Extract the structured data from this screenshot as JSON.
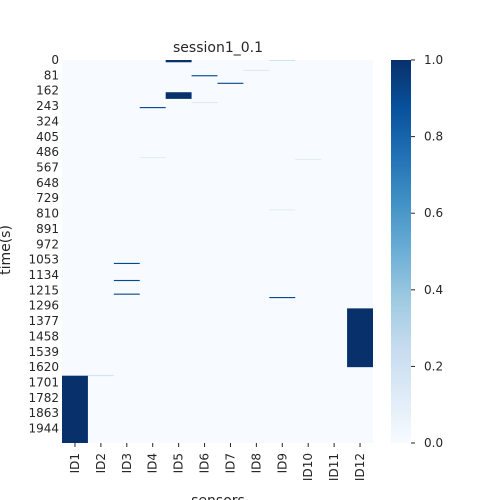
{
  "chart_data": {
    "type": "heatmap",
    "title": "session1_0.1",
    "xlabel": "sensors",
    "ylabel": "time(s)",
    "x_categories": [
      "ID1",
      "ID2",
      "ID3",
      "ID4",
      "ID5",
      "ID6",
      "ID7",
      "ID8",
      "ID9",
      "ID10",
      "ID11",
      "ID12"
    ],
    "y_ticks": [
      0,
      81,
      162,
      243,
      324,
      405,
      486,
      567,
      648,
      729,
      810,
      891,
      972,
      1053,
      1134,
      1215,
      1296,
      1377,
      1458,
      1539,
      1620,
      1701,
      1782,
      1863,
      1944
    ],
    "y_range": [
      0,
      2020
    ],
    "value_range": [
      0.0,
      1.0
    ],
    "colorbar": {
      "colormap": "Blues",
      "ticks": [
        "0.0",
        "0.2",
        "0.4",
        "0.6",
        "0.8",
        "1.0"
      ]
    },
    "active_events": [
      {
        "sensor": "ID5",
        "start": 0,
        "end": 12,
        "value": 1.0
      },
      {
        "sensor": "ID6",
        "start": 80,
        "end": 86,
        "value": 0.9
      },
      {
        "sensor": "ID7",
        "start": 120,
        "end": 126,
        "value": 0.9
      },
      {
        "sensor": "ID8",
        "start": 52,
        "end": 55,
        "value": 0.15
      },
      {
        "sensor": "ID9",
        "start": 0,
        "end": 4,
        "value": 0.2
      },
      {
        "sensor": "ID5",
        "start": 170,
        "end": 205,
        "value": 1.0
      },
      {
        "sensor": "ID6",
        "start": 222,
        "end": 225,
        "value": 0.15
      },
      {
        "sensor": "ID4",
        "start": 248,
        "end": 254,
        "value": 0.9
      },
      {
        "sensor": "ID4",
        "start": 512,
        "end": 515,
        "value": 0.12
      },
      {
        "sensor": "ID10",
        "start": 522,
        "end": 525,
        "value": 0.12
      },
      {
        "sensor": "ID9",
        "start": 788,
        "end": 791,
        "value": 0.12
      },
      {
        "sensor": "ID3",
        "start": 1070,
        "end": 1076,
        "value": 0.9
      },
      {
        "sensor": "ID3",
        "start": 1160,
        "end": 1166,
        "value": 0.9
      },
      {
        "sensor": "ID3",
        "start": 1232,
        "end": 1238,
        "value": 0.9
      },
      {
        "sensor": "ID9",
        "start": 1250,
        "end": 1256,
        "value": 0.9
      },
      {
        "sensor": "ID12",
        "start": 1310,
        "end": 1620,
        "value": 1.0
      },
      {
        "sensor": "ID2",
        "start": 1662,
        "end": 1666,
        "value": 0.2
      },
      {
        "sensor": "ID1",
        "start": 1665,
        "end": 2020,
        "value": 1.0
      }
    ]
  }
}
